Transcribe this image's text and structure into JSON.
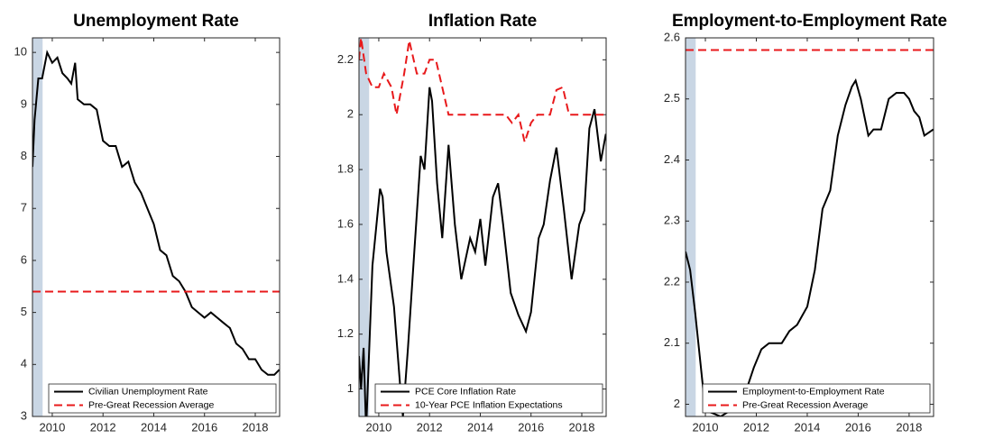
{
  "chart_data": [
    {
      "type": "line",
      "title": "Unemployment Rate",
      "xlim": [
        2009.22,
        2018.96
      ],
      "xticks": [
        2010,
        2012,
        2014,
        2016,
        2018
      ],
      "ylim": [
        3,
        10.28
      ],
      "yticks": [
        3,
        4,
        5,
        6,
        7,
        8,
        9,
        10
      ],
      "shaded_span": [
        2009.22,
        2009.62
      ],
      "shade_color": "#c9d6e4",
      "legend": "lower right",
      "series": [
        {
          "name": "Civilian Unemployment Rate",
          "color": "#000000",
          "style": "solid",
          "x": [
            2009.22,
            2009.3,
            2009.45,
            2009.6,
            2009.8,
            2010.0,
            2010.2,
            2010.4,
            2010.6,
            2010.75,
            2010.9,
            2011.0,
            2011.25,
            2011.5,
            2011.75,
            2012.0,
            2012.25,
            2012.5,
            2012.75,
            2013.0,
            2013.25,
            2013.5,
            2013.75,
            2014.0,
            2014.25,
            2014.5,
            2014.75,
            2015.0,
            2015.25,
            2015.5,
            2015.75,
            2016.0,
            2016.25,
            2016.5,
            2016.75,
            2017.0,
            2017.25,
            2017.5,
            2017.75,
            2018.0,
            2018.25,
            2018.5,
            2018.75,
            2018.95
          ],
          "values": [
            7.8,
            8.7,
            9.5,
            9.5,
            10.0,
            9.8,
            9.9,
            9.6,
            9.5,
            9.4,
            9.8,
            9.1,
            9.0,
            9.0,
            8.9,
            8.3,
            8.2,
            8.2,
            7.8,
            7.9,
            7.5,
            7.3,
            7.0,
            6.7,
            6.2,
            6.1,
            5.7,
            5.6,
            5.4,
            5.1,
            5.0,
            4.9,
            5.0,
            4.9,
            4.8,
            4.7,
            4.4,
            4.3,
            4.1,
            4.1,
            3.9,
            3.8,
            3.8,
            3.9
          ]
        },
        {
          "name": "Pre-Great Recession Average",
          "color": "#e8191b",
          "style": "dashed",
          "x": [
            2009.22,
            2018.96
          ],
          "values": [
            5.4,
            5.4
          ]
        }
      ]
    },
    {
      "type": "line",
      "title": "Inflation Rate",
      "xlim": [
        2009.22,
        2018.96
      ],
      "xticks": [
        2010,
        2012,
        2014,
        2016,
        2018
      ],
      "ylim": [
        0.9,
        2.28
      ],
      "yticks": [
        1,
        1.2,
        1.4,
        1.6,
        1.8,
        2,
        2.2
      ],
      "shaded_span": [
        2009.22,
        2009.62
      ],
      "shade_color": "#c9d6e4",
      "legend": "lower right",
      "series": [
        {
          "name": "PCE Core Inflation Rate",
          "color": "#000000",
          "style": "solid",
          "x": [
            2009.22,
            2009.3,
            2009.4,
            2009.5,
            2009.75,
            2010.05,
            2010.15,
            2010.3,
            2010.6,
            2010.85,
            2010.95,
            2011.15,
            2011.4,
            2011.65,
            2011.8,
            2012.0,
            2012.1,
            2012.3,
            2012.5,
            2012.75,
            2013.0,
            2013.25,
            2013.6,
            2013.8,
            2014.0,
            2014.2,
            2014.5,
            2014.7,
            2014.9,
            2015.2,
            2015.5,
            2015.8,
            2016.0,
            2016.3,
            2016.5,
            2016.75,
            2017.0,
            2017.3,
            2017.6,
            2017.9,
            2018.1,
            2018.3,
            2018.5,
            2018.75,
            2018.95
          ],
          "values": [
            1.12,
            1.0,
            1.15,
            0.85,
            1.45,
            1.73,
            1.7,
            1.5,
            1.3,
            1.0,
            0.9,
            1.15,
            1.5,
            1.85,
            1.8,
            2.1,
            2.05,
            1.75,
            1.55,
            1.89,
            1.6,
            1.4,
            1.55,
            1.5,
            1.62,
            1.45,
            1.7,
            1.75,
            1.6,
            1.35,
            1.27,
            1.21,
            1.28,
            1.55,
            1.6,
            1.76,
            1.88,
            1.65,
            1.4,
            1.6,
            1.65,
            1.95,
            2.02,
            1.83,
            1.93
          ]
        },
        {
          "name": "10-Year PCE Inflation Expectations",
          "color": "#e8191b",
          "style": "dashed",
          "x": [
            2009.22,
            2009.3,
            2009.5,
            2009.75,
            2010.0,
            2010.2,
            2010.5,
            2010.7,
            2011.0,
            2011.2,
            2011.5,
            2011.8,
            2012.0,
            2012.25,
            2012.5,
            2012.75,
            2013.0,
            2015.0,
            2015.25,
            2015.5,
            2015.75,
            2016.0,
            2016.25,
            2016.75,
            2017.0,
            2017.25,
            2017.5,
            2018.96
          ],
          "values": [
            2.2,
            2.28,
            2.15,
            2.1,
            2.1,
            2.15,
            2.1,
            2.0,
            2.15,
            2.27,
            2.15,
            2.15,
            2.2,
            2.2,
            2.1,
            2.0,
            2.0,
            2.0,
            1.97,
            2.0,
            1.9,
            1.97,
            2.0,
            2.0,
            2.09,
            2.1,
            2.0,
            2.0
          ]
        }
      ]
    },
    {
      "type": "line",
      "title": "Employment-to-Employment Rate",
      "xlim": [
        2009.22,
        2018.96
      ],
      "xticks": [
        2010,
        2012,
        2014,
        2016,
        2018
      ],
      "ylim": [
        1.98,
        2.6
      ],
      "yticks": [
        2,
        2.1,
        2.2,
        2.3,
        2.4,
        2.5,
        2.6
      ],
      "shaded_span": [
        2009.22,
        2009.62
      ],
      "shade_color": "#c9d6e4",
      "legend": "lower right",
      "series": [
        {
          "name": "Employment-to-Employment Rate",
          "color": "#000000",
          "style": "solid",
          "x": [
            2009.22,
            2009.4,
            2009.6,
            2009.85,
            2010.0,
            2010.3,
            2010.6,
            2011.0,
            2011.3,
            2011.5,
            2011.9,
            2012.2,
            2012.5,
            2012.8,
            2013.0,
            2013.3,
            2013.6,
            2014.0,
            2014.3,
            2014.6,
            2014.9,
            2015.2,
            2015.5,
            2015.75,
            2015.9,
            2016.1,
            2016.4,
            2016.6,
            2016.9,
            2017.2,
            2017.5,
            2017.8,
            2018.0,
            2018.2,
            2018.4,
            2018.6,
            2018.95
          ],
          "values": [
            2.25,
            2.22,
            2.15,
            2.05,
            1.99,
            1.985,
            1.98,
            1.99,
            1.99,
            2.01,
            2.06,
            2.09,
            2.1,
            2.1,
            2.1,
            2.12,
            2.13,
            2.16,
            2.22,
            2.32,
            2.35,
            2.44,
            2.49,
            2.52,
            2.53,
            2.5,
            2.44,
            2.45,
            2.45,
            2.5,
            2.51,
            2.51,
            2.5,
            2.48,
            2.47,
            2.44,
            2.45
          ]
        },
        {
          "name": "Pre-Great Recession Average",
          "color": "#e8191b",
          "style": "dashed",
          "x": [
            2009.22,
            2018.96
          ],
          "values": [
            2.58,
            2.58
          ]
        }
      ]
    }
  ]
}
